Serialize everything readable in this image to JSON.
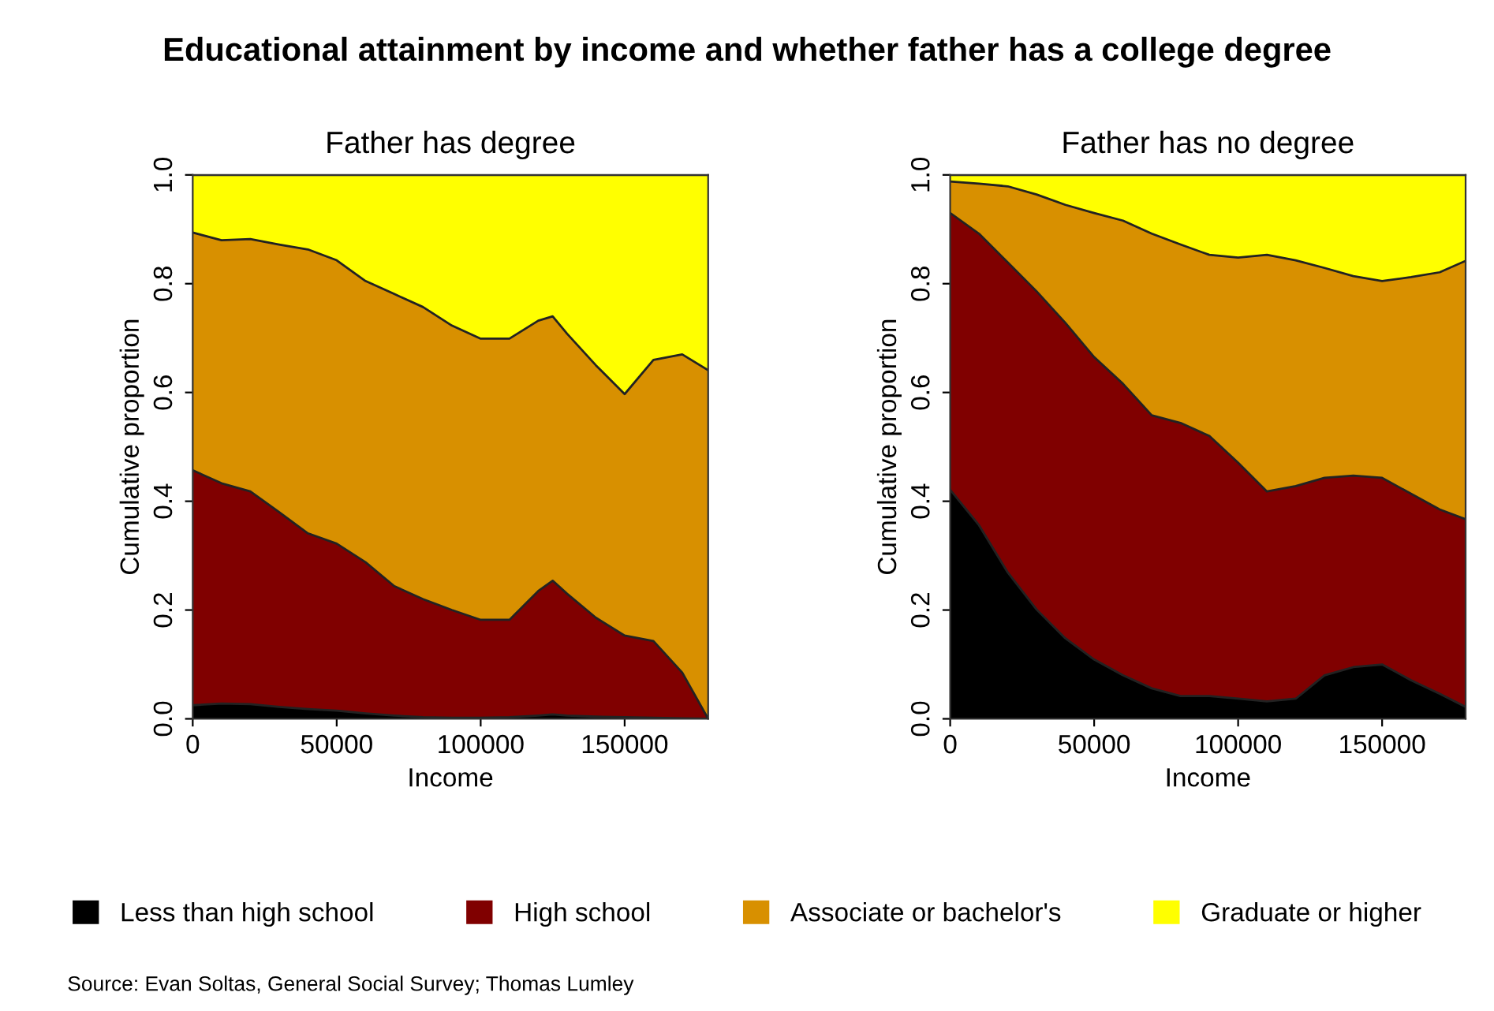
{
  "chart_data": [
    {
      "type": "area",
      "stacked": true,
      "title": "Father has degree",
      "xlabel": "Income",
      "ylabel": "Cumulative proportion",
      "legend": "bottom",
      "annotations": [
        "Educational attainment by income and whether father has a college degree",
        "Source: Evan Soltas, General Social Survey; Thomas Lumley"
      ],
      "x": [
        0,
        10000,
        20000,
        30000,
        40000,
        50000,
        60000,
        70000,
        80000,
        90000,
        100000,
        110000,
        120000,
        125000,
        130000,
        140000,
        150000,
        160000,
        170000,
        179000
      ],
      "series": [
        {
          "name": "Less than high school",
          "color": "#000000",
          "values": [
            0.025,
            0.028,
            0.027,
            0.022,
            0.018,
            0.015,
            0.01,
            0.006,
            0.003,
            0.002,
            0.002,
            0.003,
            0.006,
            0.008,
            0.006,
            0.004,
            0.003,
            0.002,
            0.001,
            0
          ]
        },
        {
          "name": "High school",
          "color": "#800000",
          "values": [
            0.432,
            0.405,
            0.391,
            0.358,
            0.323,
            0.307,
            0.278,
            0.238,
            0.217,
            0.198,
            0.18,
            0.179,
            0.229,
            0.246,
            0.224,
            0.182,
            0.15,
            0.141,
            0.084,
            0
          ]
        },
        {
          "name": "Associate or bachelor's",
          "color": "#d89000",
          "values": [
            0.437,
            0.447,
            0.464,
            0.492,
            0.522,
            0.521,
            0.517,
            0.537,
            0.537,
            0.523,
            0.517,
            0.517,
            0.497,
            0.486,
            0.478,
            0.464,
            0.444,
            0.517,
            0.585,
            0.641
          ]
        },
        {
          "name": "Graduate or higher",
          "color": "#ffff00",
          "values": [
            0.106,
            0.12,
            0.118,
            0.128,
            0.137,
            0.157,
            0.195,
            0.219,
            0.243,
            0.277,
            0.301,
            0.301,
            0.268,
            0.26,
            0.292,
            0.35,
            0.403,
            0.34,
            0.33,
            0.359
          ]
        }
      ],
      "xlim": [
        0,
        179000
      ],
      "xticks": [
        0,
        50000,
        100000,
        150000
      ],
      "ylim": [
        0,
        1
      ],
      "yticks": [
        {
          "value": 0,
          "label": "0.0"
        },
        {
          "value": 0.2,
          "label": "0.2"
        },
        {
          "value": 0.4,
          "label": "0.4"
        },
        {
          "value": 0.6,
          "label": "0.6"
        },
        {
          "value": 0.8,
          "label": "0.8"
        },
        {
          "value": 1,
          "label": "1.0"
        }
      ],
      "grid": false
    },
    {
      "type": "area",
      "stacked": true,
      "title": "Father has no degree",
      "xlabel": "Income",
      "ylabel": "Cumulative proportion",
      "x": [
        0,
        10000,
        20000,
        30000,
        40000,
        50000,
        60000,
        70000,
        80000,
        90000,
        100000,
        110000,
        120000,
        130000,
        140000,
        150000,
        160000,
        170000,
        179000
      ],
      "series": [
        {
          "color": "#000000",
          "values": [
            0.421,
            0.356,
            0.269,
            0.201,
            0.148,
            0.109,
            0.08,
            0.056,
            0.042,
            0.042,
            0.037,
            0.032,
            0.037,
            0.08,
            0.095,
            0.1,
            0.071,
            0.046,
            0.022
          ]
        },
        {
          "color": "#800000",
          "values": [
            0.509,
            0.536,
            0.57,
            0.585,
            0.58,
            0.556,
            0.536,
            0.502,
            0.502,
            0.478,
            0.434,
            0.386,
            0.391,
            0.363,
            0.352,
            0.343,
            0.343,
            0.339,
            0.345
          ]
        },
        {
          "color": "#d89000",
          "values": [
            0.058,
            0.092,
            0.14,
            0.178,
            0.217,
            0.265,
            0.3,
            0.334,
            0.328,
            0.333,
            0.377,
            0.435,
            0.415,
            0.386,
            0.367,
            0.362,
            0.398,
            0.436,
            0.475
          ]
        },
        {
          "color": "#ffff00",
          "values": [
            0.012,
            0.016,
            0.021,
            0.036,
            0.055,
            0.07,
            0.084,
            0.108,
            0.128,
            0.147,
            0.152,
            0.147,
            0.157,
            0.171,
            0.186,
            0.195,
            0.188,
            0.179,
            0.158
          ]
        }
      ],
      "xlim": [
        0,
        179000
      ],
      "xticks": [
        0,
        50000,
        100000,
        150000
      ],
      "ylim": [
        0,
        1
      ],
      "yticks": [
        {
          "value": 0,
          "label": "0.0"
        },
        {
          "value": 0.2,
          "label": "0.2"
        },
        {
          "value": 0.4,
          "label": "0.4"
        },
        {
          "value": 0.6,
          "label": "0.6"
        },
        {
          "value": 0.8,
          "label": "0.8"
        },
        {
          "value": 1,
          "label": "1.0"
        }
      ],
      "grid": false
    }
  ]
}
